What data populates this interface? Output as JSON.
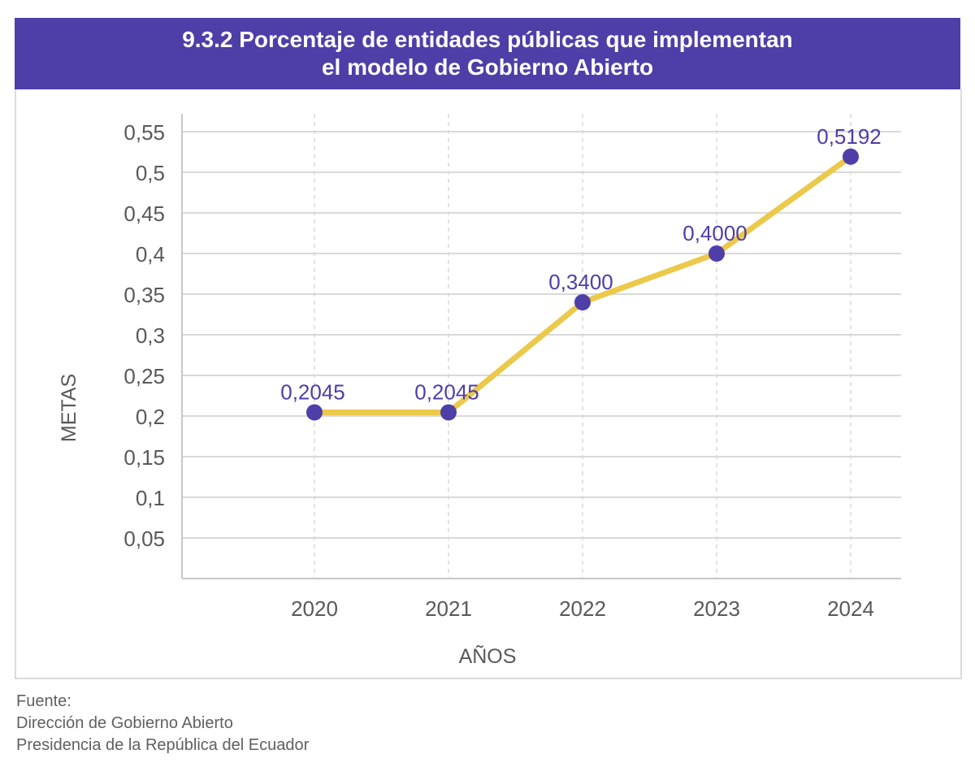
{
  "title": {
    "line1": "9.3.2 Porcentaje de entidades públicas que implementan",
    "line2": "el modelo de Gobierno Abierto"
  },
  "chart_data": {
    "type": "line",
    "title": "9.3.2 Porcentaje de entidades públicas que implementan el modelo de Gobierno Abierto",
    "xlabel": "AÑOS",
    "ylabel": "METAS",
    "categories": [
      "2020",
      "2021",
      "2022",
      "2023",
      "2024"
    ],
    "series": [
      {
        "values": [
          0.2045,
          0.2045,
          0.34,
          0.4,
          0.5192
        ],
        "labels": [
          "0,2045",
          "0,2045",
          "0,3400",
          "0,4000",
          "0,5192"
        ]
      }
    ],
    "y_ticks": [
      0.05,
      0.1,
      0.15,
      0.2,
      0.25,
      0.3,
      0.35,
      0.4,
      0.45,
      0.5,
      0.55
    ],
    "y_tick_labels": [
      "0,05",
      "0,1",
      "0,15",
      "0,2",
      "0,25",
      "0,3",
      "0,35",
      "0,4",
      "0,45",
      "0,5",
      "0,55"
    ],
    "ylim": [
      0,
      0.55
    ],
    "grid": true,
    "legend": "none"
  },
  "colors": {
    "title_bg": "#4e3ea8",
    "line": "#ebc94a",
    "marker": "#4e3ea8",
    "data_label": "#4e3ea8",
    "grid": "#d9d9d9",
    "axis_text": "#595959"
  },
  "source": {
    "label": "Fuente:",
    "line1": "Dirección de Gobierno Abierto",
    "line2": "Presidencia de la República del Ecuador"
  }
}
